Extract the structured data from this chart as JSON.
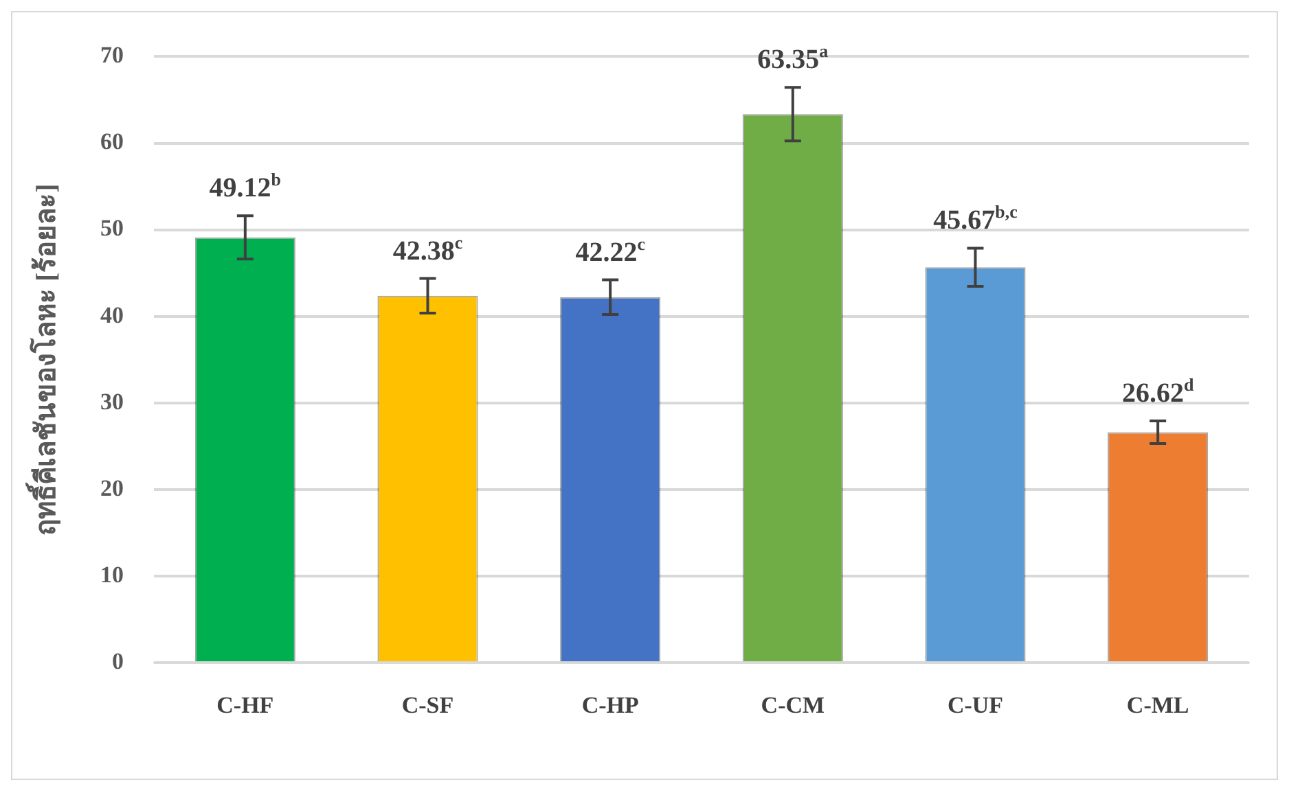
{
  "chart_data": {
    "type": "bar",
    "ylabel": "ฤทธิ์คีเลชันของโลหะ [ร้อยละ]",
    "categories": [
      "C-HF",
      "C-SF",
      "C-HP",
      "C-CM",
      "C-UF",
      "C-ML"
    ],
    "values": [
      49.12,
      42.38,
      42.22,
      63.35,
      45.67,
      26.62
    ],
    "colors": [
      "#00b050",
      "#ffc000",
      "#4472c4",
      "#70ad47",
      "#5b9bd5",
      "#ed7d31"
    ],
    "errors": [
      2.5,
      2.0,
      2.0,
      3.1,
      2.2,
      1.3
    ],
    "value_labels": [
      "49.12$^{b}$",
      "42.38$^{c}$",
      "42.22$^{c}$",
      "63.35$^{a}$",
      "45.67$^{b,c}$",
      "26.62$^{d}$"
    ],
    "ylim": [
      0,
      70
    ],
    "yticks": [
      0,
      10,
      20,
      30,
      40,
      50,
      60,
      70
    ],
    "grid": "y",
    "legend": false
  }
}
